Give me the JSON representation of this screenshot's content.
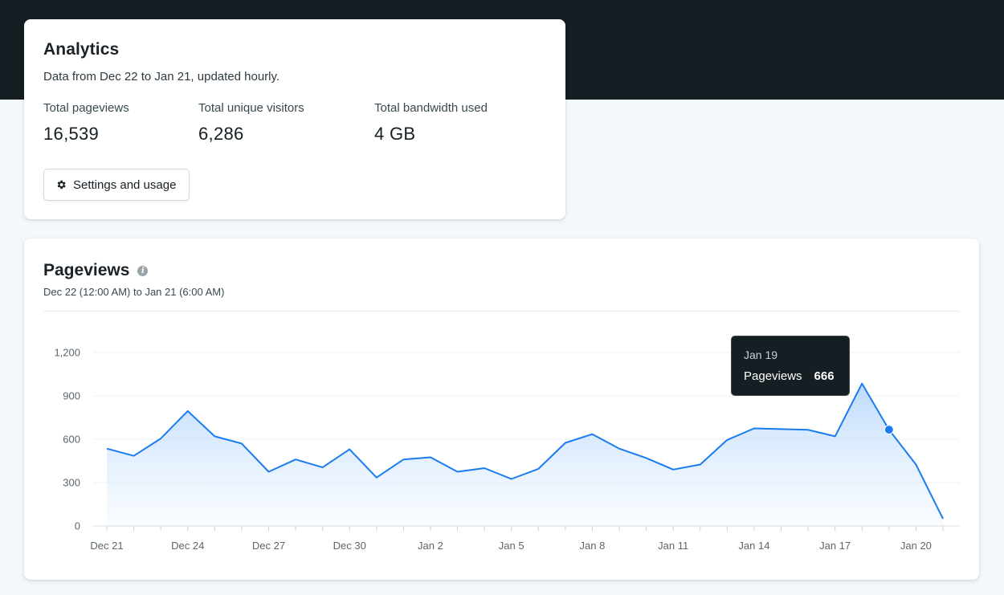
{
  "analytics": {
    "title": "Analytics",
    "subtitle": "Data from Dec 22 to Jan 21, updated hourly.",
    "stats": [
      {
        "label": "Total pageviews",
        "value": "16,539"
      },
      {
        "label": "Total unique visitors",
        "value": "6,286"
      },
      {
        "label": "Total bandwidth used",
        "value": "4 GB"
      }
    ],
    "settings_button": "Settings and usage"
  },
  "pageviews": {
    "title": "Pageviews",
    "info_icon": "info-icon",
    "range": "Dec 22 (12:00 AM) to Jan 21 (6:00 AM)",
    "tooltip": {
      "date": "Jan 19",
      "label": "Pageviews",
      "value": "666"
    }
  },
  "colors": {
    "line": "#1a7cf0",
    "fill": "#cfe4fb",
    "dark": "#141e23"
  },
  "chart_data": {
    "type": "area",
    "title": "Pageviews",
    "xlabel": "",
    "ylabel": "",
    "ylim": [
      0,
      1200
    ],
    "yticks": [
      0,
      300,
      600,
      900,
      1200
    ],
    "ytick_labels": [
      "0",
      "300",
      "600",
      "900",
      "1,200"
    ],
    "xtick_labels": [
      "Dec 21",
      "Dec 24",
      "Dec 27",
      "Dec 30",
      "Jan 2",
      "Jan 5",
      "Jan 8",
      "Jan 11",
      "Jan 14",
      "Jan 17",
      "Jan 20"
    ],
    "categories": [
      "Dec 21",
      "Dec 22",
      "Dec 23",
      "Dec 24",
      "Dec 25",
      "Dec 26",
      "Dec 27",
      "Dec 28",
      "Dec 29",
      "Dec 30",
      "Dec 31",
      "Jan 1",
      "Jan 2",
      "Jan 3",
      "Jan 4",
      "Jan 5",
      "Jan 6",
      "Jan 7",
      "Jan 8",
      "Jan 9",
      "Jan 10",
      "Jan 11",
      "Jan 12",
      "Jan 13",
      "Jan 14",
      "Jan 15",
      "Jan 16",
      "Jan 17",
      "Jan 18",
      "Jan 19",
      "Jan 20",
      "Jan 21"
    ],
    "series": [
      {
        "name": "Pageviews",
        "values": [
          535,
          485,
          605,
          795,
          620,
          570,
          375,
          460,
          405,
          530,
          335,
          460,
          475,
          375,
          400,
          325,
          395,
          575,
          635,
          535,
          470,
          390,
          425,
          595,
          675,
          670,
          665,
          620,
          985,
          666,
          425,
          50
        ]
      }
    ],
    "highlight": {
      "category": "Jan 19",
      "value": 666
    },
    "grid": true
  }
}
